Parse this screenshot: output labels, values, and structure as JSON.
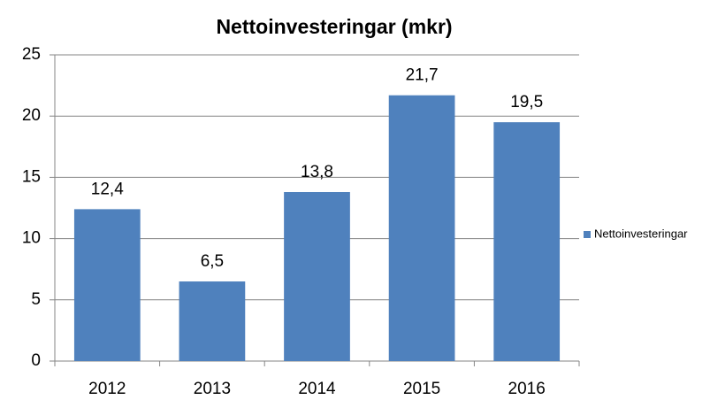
{
  "chart_data": {
    "type": "bar",
    "title": "Nettoinvesteringar (mkr)",
    "categories": [
      "2012",
      "2013",
      "2014",
      "2015",
      "2016"
    ],
    "series": [
      {
        "name": "Nettoinvesteringar",
        "color": "#4f81bd",
        "values": [
          12.4,
          6.5,
          13.8,
          21.7,
          19.5
        ],
        "value_labels": [
          "12,4",
          "6,5",
          "13,8",
          "21,7",
          "19,5"
        ]
      }
    ],
    "ylim": [
      0,
      25
    ],
    "yticks": [
      0,
      5,
      10,
      15,
      20,
      25
    ],
    "grid": true,
    "legend": "right"
  }
}
